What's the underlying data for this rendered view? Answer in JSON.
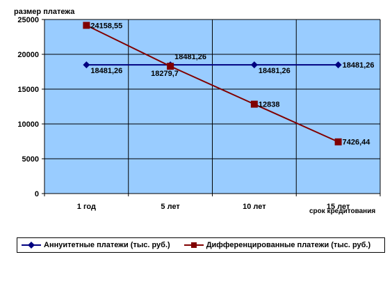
{
  "chart_data": {
    "type": "line",
    "ylabel": "размер платежа",
    "xlabel": "срок кредитования",
    "categories": [
      "1 год",
      "5 лет",
      "10 лет",
      "15 лет"
    ],
    "ylim": [
      0,
      25000
    ],
    "yticks": [
      0,
      5000,
      10000,
      15000,
      20000,
      25000
    ],
    "grid": true,
    "legend_position": "bottom",
    "plot_background": "#99ccff",
    "series": [
      {
        "name": "Аннуитетные платежи (тыс. руб.)",
        "color": "#000080",
        "marker": "diamond",
        "values": [
          18481.26,
          18481.26,
          18481.26,
          18481.26
        ],
        "labels": [
          "18481,26",
          "18481,26",
          "18481,26",
          "18481,26"
        ]
      },
      {
        "name": "Дифференцированные платежи  (тыс. руб.)",
        "color": "#800000",
        "marker": "square",
        "values": [
          24158.55,
          18279.7,
          12838,
          7426.44
        ],
        "labels": [
          "24158,55",
          "18279,7",
          "12838",
          "7426,44"
        ]
      }
    ]
  }
}
